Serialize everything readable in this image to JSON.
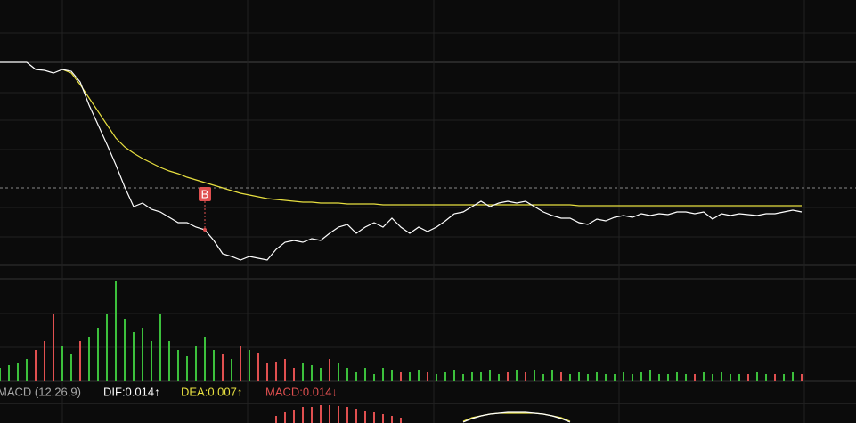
{
  "chart_data": {
    "type": "stock",
    "price": {
      "values": [
        228,
        228,
        228,
        228,
        220,
        219,
        216,
        220,
        218,
        206,
        180,
        158,
        136,
        113,
        88,
        66,
        70,
        63,
        60,
        54,
        48,
        48,
        43,
        40,
        28,
        13,
        10,
        6,
        10,
        8,
        6,
        18,
        26,
        28,
        26,
        30,
        28,
        36,
        43,
        46,
        36,
        43,
        48,
        43,
        53,
        43,
        36,
        43,
        38,
        43,
        50,
        58,
        60,
        66,
        72,
        66,
        70,
        72,
        70,
        72,
        66,
        60,
        56,
        53,
        53,
        48,
        46,
        52,
        50,
        54,
        56,
        54,
        58,
        56,
        58,
        57,
        60,
        60,
        58,
        60,
        52,
        58,
        56,
        58,
        57,
        56,
        58,
        58,
        60,
        62,
        60
      ],
      "color": "#ffffff"
    },
    "average": {
      "values": [
        null,
        null,
        null,
        null,
        null,
        null,
        null,
        220,
        216,
        203,
        188,
        173,
        158,
        143,
        133,
        126,
        120,
        115,
        110,
        106,
        103,
        99,
        96,
        93,
        90,
        87,
        84,
        81,
        79,
        77,
        75,
        74,
        73,
        72,
        71,
        71,
        70,
        70,
        70,
        69,
        69,
        69,
        69,
        68,
        68,
        68,
        68,
        68,
        68,
        68,
        68,
        68,
        68,
        68,
        68,
        68,
        68,
        68,
        68,
        68,
        68,
        68,
        68,
        68,
        68,
        67,
        67,
        67,
        67,
        67,
        67,
        67,
        67,
        67,
        67,
        67,
        67,
        67,
        67,
        67,
        67,
        67,
        67,
        67,
        67,
        67,
        67,
        67,
        67,
        67,
        67
      ],
      "color": "#e8e040"
    },
    "ylim": [
      0,
      298
    ],
    "reference": 87,
    "marker": {
      "label": "B",
      "index": 23,
      "color": "#e05050"
    },
    "volume": {
      "values": [
        15,
        18,
        20,
        25,
        35,
        45,
        75,
        40,
        30,
        45,
        50,
        60,
        75,
        112,
        70,
        55,
        60,
        45,
        75,
        45,
        35,
        28,
        40,
        50,
        35,
        30,
        25,
        40,
        35,
        32,
        20,
        22,
        25,
        15,
        20,
        18,
        15,
        25,
        20,
        15,
        10,
        15,
        8,
        15,
        12,
        10,
        10,
        12,
        10,
        8,
        10,
        12,
        8,
        10,
        10,
        12,
        8,
        10,
        12,
        10,
        12,
        8,
        12,
        10,
        8,
        10,
        8,
        10,
        8,
        8,
        10,
        8,
        10,
        12,
        8,
        8,
        10,
        8,
        8,
        10,
        8,
        10,
        8,
        8,
        8,
        10,
        8,
        8,
        8,
        10,
        8
      ],
      "rising": [
        false,
        false,
        false,
        false,
        true,
        true,
        true,
        false,
        false,
        true,
        false,
        false,
        false,
        false,
        false,
        false,
        false,
        false,
        false,
        false,
        false,
        false,
        false,
        false,
        false,
        true,
        false,
        true,
        false,
        true,
        true,
        true,
        true,
        true,
        false,
        false,
        false,
        true,
        false,
        false,
        false,
        false,
        false,
        false,
        false,
        true,
        false,
        false,
        true,
        false,
        false,
        false,
        false,
        false,
        false,
        false,
        false,
        true,
        false,
        true,
        false,
        false,
        false,
        true,
        false,
        false,
        false,
        false,
        false,
        false,
        false,
        false,
        false,
        false,
        false,
        false,
        false,
        false,
        true,
        false,
        false,
        false,
        false,
        false,
        true,
        false,
        false,
        true,
        false,
        false,
        true
      ],
      "up_color": "#e05050",
      "down_color": "#3cc03c",
      "ylim": [
        0,
        115
      ]
    },
    "macd": {
      "title": "MACD (12,26,9)",
      "dif_label": "DIF:0.014↑",
      "dea_label": "DEA:0.007↑",
      "macd_label": "MACD:0.014↓",
      "hist": [
        null,
        null,
        null,
        null,
        null,
        null,
        null,
        null,
        null,
        null,
        null,
        null,
        null,
        null,
        null,
        null,
        null,
        null,
        null,
        null,
        null,
        null,
        null,
        null,
        null,
        null,
        null,
        null,
        null,
        null,
        null,
        8,
        12,
        15,
        18,
        18,
        20,
        20,
        19,
        18,
        16,
        14,
        12,
        10,
        8,
        6,
        null,
        null,
        null,
        null,
        null,
        null,
        null,
        null,
        null,
        null,
        null,
        null,
        null,
        null,
        null,
        null,
        null,
        null,
        null,
        null,
        null,
        null,
        null,
        null,
        null,
        null,
        null,
        null,
        null,
        null,
        null,
        null,
        null,
        null,
        null,
        null,
        null,
        null,
        null,
        null,
        null,
        null,
        null,
        null,
        null
      ],
      "dif": [
        null,
        null,
        null,
        null,
        null,
        null,
        null,
        null,
        null,
        null,
        null,
        null,
        null,
        null,
        null,
        null,
        null,
        null,
        null,
        null,
        null,
        null,
        null,
        null,
        null,
        null,
        null,
        null,
        null,
        null,
        null,
        null,
        null,
        null,
        null,
        null,
        null,
        null,
        null,
        null,
        null,
        null,
        null,
        null,
        null,
        null,
        null,
        null,
        null,
        null,
        null,
        null,
        1,
        5,
        8,
        10,
        11,
        12,
        12,
        12,
        11,
        10,
        8,
        5,
        1,
        null,
        null,
        null,
        null,
        null,
        null,
        null,
        null,
        null,
        null,
        null,
        null,
        null,
        null,
        null,
        null,
        null,
        null,
        null,
        null,
        null,
        null,
        null,
        null,
        null,
        null
      ],
      "dea": [
        null,
        null,
        null,
        null,
        null,
        null,
        null,
        null,
        null,
        null,
        null,
        null,
        null,
        null,
        null,
        null,
        null,
        null,
        null,
        null,
        null,
        null,
        null,
        null,
        null,
        null,
        null,
        null,
        null,
        null,
        null,
        null,
        null,
        null,
        null,
        null,
        null,
        null,
        null,
        null,
        null,
        null,
        null,
        null,
        null,
        null,
        null,
        null,
        null,
        null,
        null,
        null,
        2,
        6,
        8,
        10,
        11,
        11,
        11,
        11,
        11,
        10,
        8,
        6,
        2,
        null,
        null,
        null,
        null,
        null,
        null,
        null,
        null,
        null,
        null,
        null,
        null,
        null,
        null,
        null,
        null,
        null,
        null,
        null,
        null,
        null,
        null,
        null,
        null,
        null,
        null
      ],
      "ylim": [
        0,
        25
      ],
      "dif_color": "#ffffff",
      "dea_color": "#e8e040",
      "hist_color": "#e05050"
    }
  }
}
